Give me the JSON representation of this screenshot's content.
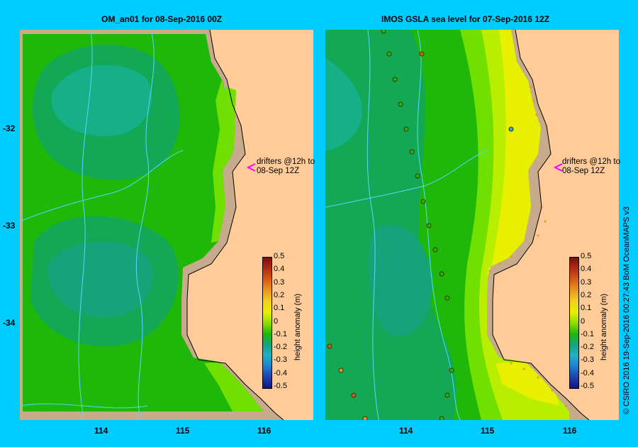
{
  "panels": [
    {
      "title": "OM_an01  for 08-Sep-2016 00Z",
      "annotation_line1": "drifters @12h to",
      "annotation_line2": "08-Sep 12Z"
    },
    {
      "title": "IMOS  GSLA sea level   for 07-Sep-2016 12Z",
      "annotation_line1": "drifters @12h to",
      "annotation_line2": "08-Sep 12Z"
    }
  ],
  "x_ticks": [
    "114",
    "115",
    "116"
  ],
  "y_ticks": [
    "-32",
    "-33",
    "-34"
  ],
  "colorbar": {
    "title": "height anomaly (m)",
    "labels": [
      "0.5",
      "0.4",
      "0.3",
      "0.2",
      "0.1",
      "0",
      "-0.1",
      "-0.2",
      "-0.3",
      "-0.4",
      "-0.5"
    ],
    "colors": [
      "#7a0e0e",
      "#b22a12",
      "#d65a18",
      "#e8961e",
      "#f0cf20",
      "#e8f000",
      "#8ee000",
      "#1fb80a",
      "#16a37a",
      "#22b0c8",
      "#1f7fcf",
      "#1e40b0",
      "#141480"
    ]
  },
  "credit": "© CSIRO 2016   19-Sep-2016 00:27:43 BoM OceanMAPS v3"
}
